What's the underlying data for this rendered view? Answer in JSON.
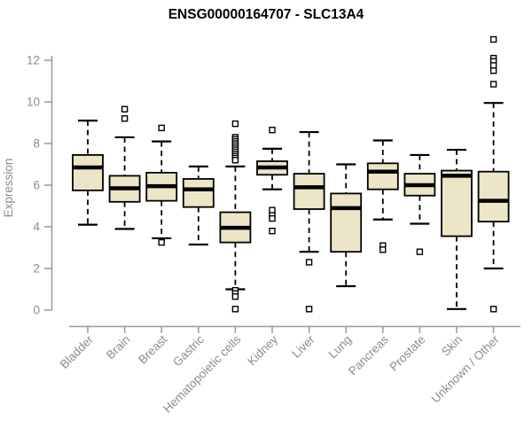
{
  "page": {
    "background": "#ffffff"
  },
  "chart_data": {
    "type": "boxplot",
    "title": "ENSG00000164707 - SLC13A4",
    "ylabel": "Expression",
    "xlabel": "",
    "ylim": [
      0,
      13.2
    ],
    "yticks": [
      0,
      2,
      4,
      6,
      8,
      10,
      12
    ],
    "grid": false,
    "legend": null,
    "categories": [
      "Bladder",
      "Brain",
      "Breast",
      "Gastric",
      "Hematopoietic cells",
      "Kidney",
      "Liver",
      "Lung",
      "Pancreas",
      "Prostate",
      "Skin",
      "Unknown / Other"
    ],
    "series": [
      {
        "category": "Bladder",
        "whisker_low": 4.1,
        "q1": 5.75,
        "median": 6.85,
        "q3": 7.45,
        "whisker_high": 9.1,
        "outliers": []
      },
      {
        "category": "Brain",
        "whisker_low": 3.9,
        "q1": 5.2,
        "median": 5.85,
        "q3": 6.45,
        "whisker_high": 8.3,
        "outliers": [
          9.2,
          9.65
        ]
      },
      {
        "category": "Breast",
        "whisker_low": 3.45,
        "q1": 5.25,
        "median": 5.95,
        "q3": 6.6,
        "whisker_high": 8.1,
        "outliers": [
          8.75,
          3.25
        ]
      },
      {
        "category": "Gastric",
        "whisker_low": 3.15,
        "q1": 4.95,
        "median": 5.8,
        "q3": 6.3,
        "whisker_high": 6.9,
        "outliers": []
      },
      {
        "category": "Hematopoietic cells",
        "whisker_low": 1.0,
        "q1": 3.25,
        "median": 3.95,
        "q3": 4.7,
        "whisker_high": 6.9,
        "outliers": [
          8.95,
          8.3,
          8.2,
          8.1,
          8.0,
          7.9,
          7.8,
          7.7,
          7.6,
          7.5,
          7.4,
          7.3,
          7.2,
          0.95,
          0.8,
          0.65,
          0.05
        ]
      },
      {
        "category": "Kidney",
        "whisker_low": 5.8,
        "q1": 6.5,
        "median": 6.85,
        "q3": 7.15,
        "whisker_high": 7.75,
        "outliers": [
          8.65,
          4.8,
          4.55,
          4.4,
          3.8
        ]
      },
      {
        "category": "Liver",
        "whisker_low": 2.8,
        "q1": 4.85,
        "median": 5.9,
        "q3": 6.55,
        "whisker_high": 8.55,
        "outliers": [
          2.3,
          0.05
        ]
      },
      {
        "category": "Lung",
        "whisker_low": 1.15,
        "q1": 2.8,
        "median": 4.9,
        "q3": 5.6,
        "whisker_high": 7.0,
        "outliers": []
      },
      {
        "category": "Pancreas",
        "whisker_low": 4.35,
        "q1": 5.8,
        "median": 6.65,
        "q3": 7.05,
        "whisker_high": 8.15,
        "outliers": [
          3.1,
          2.9
        ]
      },
      {
        "category": "Prostate",
        "whisker_low": 4.15,
        "q1": 5.5,
        "median": 6.0,
        "q3": 6.55,
        "whisker_high": 7.45,
        "outliers": [
          2.8
        ]
      },
      {
        "category": "Skin",
        "whisker_low": 0.05,
        "q1": 3.55,
        "median": 6.45,
        "q3": 6.7,
        "whisker_high": 7.7,
        "outliers": []
      },
      {
        "category": "Unknown / Other",
        "whisker_low": 2.0,
        "q1": 4.25,
        "median": 5.25,
        "q3": 6.65,
        "whisker_high": 9.95,
        "outliers": [
          13.0,
          12.1,
          11.95,
          11.75,
          11.5,
          10.85,
          0.05
        ]
      }
    ],
    "style": {
      "box_fill": "#ece5c8",
      "box_stroke": "#000000",
      "median_color": "#000000",
      "whisker_style": "dashed",
      "outlier_marker": "open-square",
      "axis_color": "#999999",
      "tick_label_color": "#8c8c8c",
      "title_color": "#000000"
    }
  }
}
